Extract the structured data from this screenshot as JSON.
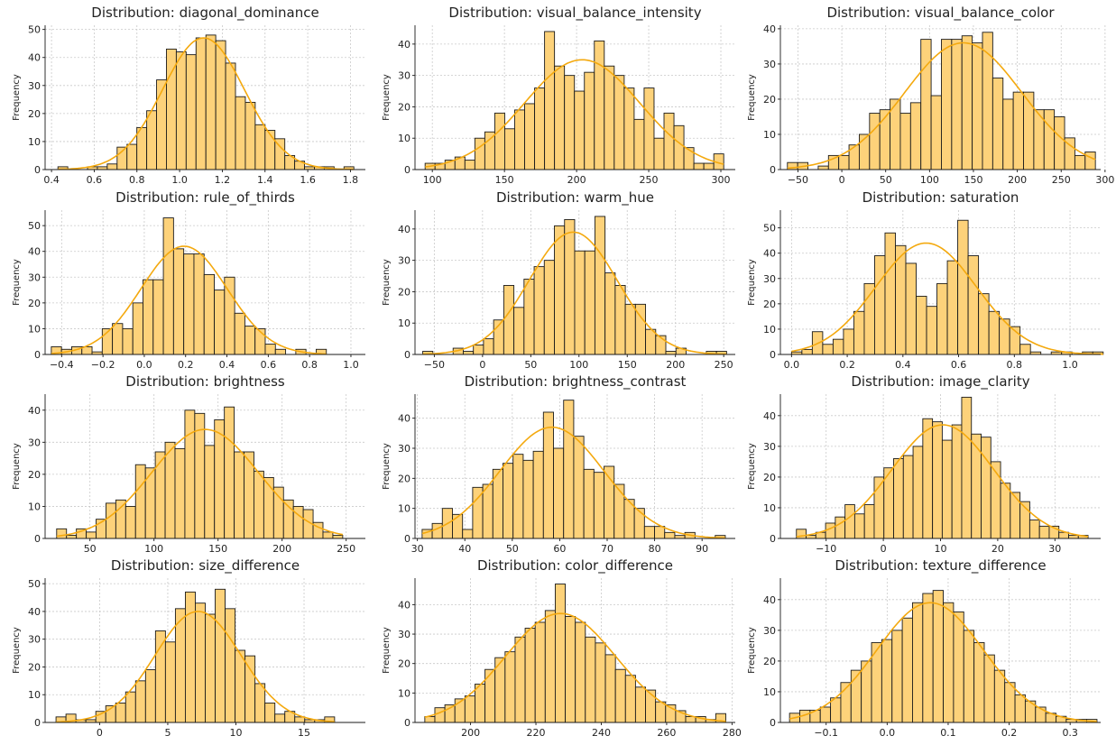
{
  "chart_data": [
    {
      "type": "bar",
      "title": "Distribution: diagonal_dominance",
      "ylabel": "Frequency",
      "xlim": [
        0.37,
        1.87
      ],
      "ylim": [
        0,
        51.5
      ],
      "xticks": [
        0.4,
        0.6,
        0.8,
        1.0,
        1.2,
        1.4,
        1.6,
        1.8
      ],
      "xtick_labels": [
        "0.4",
        "0.6",
        "0.8",
        "1.0",
        "1.2",
        "1.4",
        "1.6",
        "1.8"
      ],
      "yticks": [
        0,
        10,
        20,
        30,
        40,
        50
      ],
      "bins": {
        "start": 0.43,
        "width": 0.0462,
        "counts": [
          1,
          0,
          0,
          1,
          1,
          2,
          8,
          9,
          15,
          21,
          32,
          43,
          42,
          41,
          47,
          48,
          46,
          38,
          26,
          24,
          16,
          14,
          11,
          5,
          3,
          1,
          1,
          1,
          0,
          1
        ]
      },
      "kde_peak": 47
    },
    {
      "type": "bar",
      "title": "Distribution: visual_balance_intensity",
      "ylabel": "Frequency",
      "xlim": [
        88,
        310
      ],
      "ylim": [
        0,
        46
      ],
      "xticks": [
        100,
        150,
        200,
        250,
        300
      ],
      "xtick_labels": [
        "100",
        "150",
        "200",
        "250",
        "300"
      ],
      "yticks": [
        0,
        10,
        20,
        30,
        40
      ],
      "bins": {
        "start": 95,
        "width": 6.9,
        "counts": [
          2,
          2,
          3,
          4,
          3,
          10,
          12,
          18,
          13,
          19,
          21,
          26,
          44,
          33,
          30,
          25,
          31,
          41,
          33,
          30,
          26,
          16,
          26,
          10,
          18,
          14,
          7,
          2,
          2,
          5
        ]
      },
      "kde_peak": 35
    },
    {
      "type": "bar",
      "title": "Distribution: visual_balance_color",
      "ylabel": "Frequency",
      "xlim": [
        -70,
        295
      ],
      "ylim": [
        0,
        41
      ],
      "xticks": [
        -50,
        0,
        50,
        100,
        150,
        200,
        250,
        300
      ],
      "xtick_labels": [
        "−50",
        "0",
        "50",
        "100",
        "150",
        "200",
        "250",
        "300"
      ],
      "yticks": [
        0,
        10,
        20,
        30,
        40
      ],
      "bins": {
        "start": -62,
        "width": 11.7,
        "counts": [
          2,
          2,
          0,
          1,
          4,
          4,
          7,
          10,
          16,
          17,
          20,
          16,
          19,
          37,
          21,
          37,
          37,
          38,
          36,
          39,
          26,
          20,
          22,
          22,
          17,
          17,
          15,
          9,
          4,
          5
        ]
      },
      "kde_peak": 36
    },
    {
      "type": "bar",
      "title": "Distribution: rule_of_thirds",
      "ylabel": "Frequency",
      "xlim": [
        -0.48,
        1.07
      ],
      "ylim": [
        0,
        56
      ],
      "xticks": [
        -0.4,
        -0.2,
        0.0,
        0.2,
        0.4,
        0.6,
        0.8,
        1.0
      ],
      "xtick_labels": [
        "−0.4",
        "−0.2",
        "0.0",
        "0.2",
        "0.4",
        "0.6",
        "0.8",
        "1.0"
      ],
      "yticks": [
        0,
        10,
        20,
        30,
        40,
        50
      ],
      "bins": {
        "start": -0.45,
        "width": 0.0493,
        "counts": [
          3,
          2,
          3,
          3,
          1,
          10,
          12,
          10,
          20,
          29,
          29,
          53,
          41,
          39,
          39,
          31,
          25,
          30,
          16,
          11,
          10,
          4,
          2,
          0,
          2,
          0,
          2
        ]
      },
      "kde_peak": 42
    },
    {
      "type": "bar",
      "title": "Distribution: warm_hue",
      "ylabel": "Frequency",
      "xlim": [
        -70,
        262
      ],
      "ylim": [
        0,
        46
      ],
      "xticks": [
        -50,
        0,
        50,
        100,
        150,
        200,
        250
      ],
      "xtick_labels": [
        "−50",
        "0",
        "50",
        "100",
        "150",
        "200",
        "250"
      ],
      "yticks": [
        0,
        10,
        20,
        30,
        40
      ],
      "bins": {
        "start": -62,
        "width": 10.5,
        "counts": [
          1,
          0,
          0,
          2,
          1,
          3,
          5,
          11,
          22,
          15,
          24,
          28,
          30,
          41,
          43,
          33,
          33,
          44,
          26,
          22,
          16,
          16,
          8,
          6,
          1,
          2,
          0,
          0,
          1,
          1
        ]
      },
      "kde_peak": 39
    },
    {
      "type": "bar",
      "title": "Distribution: saturation",
      "ylabel": "Frequency",
      "xlim": [
        -0.04,
        1.11
      ],
      "ylim": [
        0,
        57
      ],
      "xticks": [
        0.0,
        0.2,
        0.4,
        0.6,
        0.8,
        1.0
      ],
      "xtick_labels": [
        "0.0",
        "0.2",
        "0.4",
        "0.6",
        "0.8",
        "1.0"
      ],
      "yticks": [
        0,
        10,
        20,
        30,
        40,
        50
      ],
      "bins": {
        "start": 0,
        "width": 0.0373,
        "counts": [
          1,
          2,
          9,
          4,
          6,
          10,
          17,
          28,
          39,
          48,
          43,
          36,
          23,
          19,
          28,
          37,
          53,
          39,
          24,
          17,
          14,
          11,
          4,
          1,
          0,
          1,
          1,
          0,
          1,
          1
        ]
      },
      "kde_peak": 44
    },
    {
      "type": "bar",
      "title": "Distribution: brightness",
      "ylabel": "Frequency",
      "xlim": [
        15,
        265
      ],
      "ylim": [
        0,
        45
      ],
      "xticks": [
        50,
        100,
        150,
        200,
        250
      ],
      "xtick_labels": [
        "50",
        "100",
        "150",
        "200",
        "250"
      ],
      "yticks": [
        0,
        10,
        20,
        30,
        40
      ],
      "bins": {
        "start": 24,
        "width": 7.7,
        "counts": [
          3,
          1,
          3,
          2,
          6,
          11,
          12,
          10,
          23,
          22,
          27,
          30,
          28,
          40,
          39,
          29,
          37,
          41,
          27,
          27,
          21,
          19,
          16,
          12,
          10,
          9,
          5,
          2,
          1
        ]
      },
      "kde_peak": 34
    },
    {
      "type": "bar",
      "title": "Distribution: brightness_contrast",
      "ylabel": "Frequency",
      "xlim": [
        29.5,
        97
      ],
      "ylim": [
        0,
        48
      ],
      "xticks": [
        30,
        40,
        50,
        60,
        70,
        80,
        90
      ],
      "xtick_labels": [
        "30",
        "40",
        "50",
        "60",
        "70",
        "80",
        "90"
      ],
      "yticks": [
        0,
        10,
        20,
        30,
        40
      ],
      "bins": {
        "start": 31,
        "width": 2.13,
        "counts": [
          3,
          5,
          10,
          8,
          3,
          17,
          18,
          23,
          25,
          28,
          26,
          29,
          42,
          30,
          46,
          34,
          23,
          22,
          24,
          18,
          13,
          10,
          4,
          4,
          2,
          1,
          2,
          0,
          0,
          1
        ]
      },
      "kde_peak": 37
    },
    {
      "type": "bar",
      "title": "Distribution: image_clarity",
      "ylabel": "Frequency",
      "xlim": [
        -18,
        38
      ],
      "ylim": [
        0,
        47
      ],
      "xticks": [
        -10,
        0,
        10,
        20,
        30
      ],
      "xtick_labels": [
        "−10",
        "0",
        "10",
        "20",
        "30"
      ],
      "yticks": [
        0,
        10,
        20,
        30,
        40
      ],
      "bins": {
        "start": -15.2,
        "width": 1.7,
        "counts": [
          3,
          1,
          2,
          5,
          7,
          11,
          8,
          11,
          20,
          23,
          26,
          27,
          30,
          39,
          38,
          32,
          37,
          46,
          34,
          33,
          25,
          18,
          15,
          12,
          6,
          4,
          4,
          2,
          1,
          1
        ]
      },
      "kde_peak": 37
    },
    {
      "type": "bar",
      "title": "Distribution: size_difference",
      "ylabel": "Frequency",
      "xlim": [
        -4,
        19.5
      ],
      "ylim": [
        0,
        52
      ],
      "xticks": [
        0,
        5,
        10,
        15
      ],
      "xtick_labels": [
        "0",
        "5",
        "10",
        "15"
      ],
      "yticks": [
        0,
        10,
        20,
        30,
        40,
        50
      ],
      "bins": {
        "start": -3.2,
        "width": 0.73,
        "counts": [
          2,
          3,
          1,
          1,
          4,
          6,
          7,
          11,
          15,
          19,
          33,
          29,
          41,
          47,
          43,
          39,
          48,
          41,
          26,
          24,
          14,
          7,
          3,
          4,
          2,
          1,
          1,
          2
        ]
      },
      "kde_peak": 40
    },
    {
      "type": "bar",
      "title": "Distribution: color_difference",
      "ylabel": "Frequency",
      "xlim": [
        183,
        281
      ],
      "ylim": [
        0,
        49
      ],
      "xticks": [
        200,
        220,
        240,
        260,
        280
      ],
      "xtick_labels": [
        "200",
        "220",
        "240",
        "260",
        "280"
      ],
      "yticks": [
        0,
        10,
        20,
        30,
        40
      ],
      "bins": {
        "start": 186,
        "width": 3.07,
        "counts": [
          2,
          5,
          6,
          8,
          9,
          13,
          18,
          22,
          24,
          29,
          32,
          34,
          38,
          47,
          36,
          34,
          29,
          27,
          23,
          18,
          16,
          12,
          11,
          7,
          6,
          4,
          2,
          2,
          1,
          3
        ]
      },
      "kde_peak": 37
    },
    {
      "type": "bar",
      "title": "Distribution: texture_difference",
      "ylabel": "Frequency",
      "xlim": [
        -0.175,
        0.35
      ],
      "ylim": [
        0,
        47
      ],
      "xticks": [
        -0.1,
        0.0,
        0.1,
        0.2,
        0.3
      ],
      "xtick_labels": [
        "−0.1",
        "0.0",
        "0.1",
        "0.2",
        "0.3"
      ],
      "yticks": [
        0,
        10,
        20,
        30,
        40
      ],
      "bins": {
        "start": -0.16,
        "width": 0.0168,
        "counts": [
          3,
          4,
          4,
          5,
          8,
          13,
          17,
          20,
          26,
          27,
          30,
          34,
          39,
          42,
          43,
          39,
          36,
          30,
          26,
          22,
          17,
          13,
          9,
          7,
          5,
          3,
          2,
          1,
          1,
          1
        ]
      },
      "kde_peak": 39
    }
  ]
}
